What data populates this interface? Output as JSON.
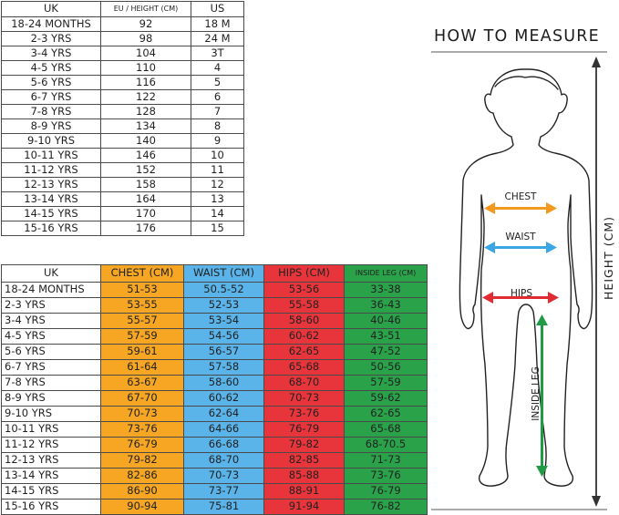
{
  "size_table": {
    "headers": [
      "UK",
      "EU / HEIGHT (CM)",
      "US"
    ],
    "rows": [
      [
        "18-24 MONTHS",
        "92",
        "18 M"
      ],
      [
        "2-3 YRS",
        "98",
        "24 M"
      ],
      [
        "3-4 YRS",
        "104",
        "3T"
      ],
      [
        "4-5 YRS",
        "110",
        "4"
      ],
      [
        "5-6 YRS",
        "116",
        "5"
      ],
      [
        "6-7 YRS",
        "122",
        "6"
      ],
      [
        "7-8 YRS",
        "128",
        "7"
      ],
      [
        "8-9 YRS",
        "134",
        "8"
      ],
      [
        "9-10 YRS",
        "140",
        "9"
      ],
      [
        "10-11 YRS",
        "146",
        "10"
      ],
      [
        "11-12 YRS",
        "152",
        "11"
      ],
      [
        "12-13 YRS",
        "158",
        "12"
      ],
      [
        "13-14 YRS",
        "164",
        "13"
      ],
      [
        "14-15 YRS",
        "170",
        "14"
      ],
      [
        "15-16 YRS",
        "176",
        "15"
      ]
    ]
  },
  "measure_table": {
    "headers": [
      "UK",
      "CHEST (CM)",
      "WAIST (CM)",
      "HIPS (CM)",
      "INSIDE LEG (CM)"
    ],
    "rows": [
      [
        "18-24 MONTHS",
        "51-53",
        "50.5-52",
        "53-56",
        "33-38"
      ],
      [
        "2-3 YRS",
        "53-55",
        "52-53",
        "55-58",
        "36-43"
      ],
      [
        "3-4 YRS",
        "55-57",
        "53-54",
        "58-60",
        "40-46"
      ],
      [
        "4-5 YRS",
        "57-59",
        "54-56",
        "60-62",
        "43-51"
      ],
      [
        "5-6 YRS",
        "59-61",
        "56-57",
        "62-65",
        "47-52"
      ],
      [
        "6-7 YRS",
        "61-64",
        "57-58",
        "65-68",
        "50-56"
      ],
      [
        "7-8 YRS",
        "63-67",
        "58-60",
        "68-70",
        "57-59"
      ],
      [
        "8-9 YRS",
        "67-70",
        "60-62",
        "70-73",
        "59-62"
      ],
      [
        "9-10 YRS",
        "70-73",
        "62-64",
        "73-76",
        "62-65"
      ],
      [
        "10-11 YRS",
        "73-76",
        "64-66",
        "76-79",
        "65-68"
      ],
      [
        "11-12 YRS",
        "76-79",
        "66-68",
        "79-82",
        "68-70.5"
      ],
      [
        "12-13 YRS",
        "79-82",
        "68-70",
        "82-85",
        "71-73"
      ],
      [
        "13-14 YRS",
        "82-86",
        "70-73",
        "85-88",
        "73-76"
      ],
      [
        "14-15 YRS",
        "86-90",
        "73-77",
        "88-91",
        "76-79"
      ],
      [
        "15-16 YRS",
        "90-94",
        "75-81",
        "91-94",
        "76-82"
      ]
    ]
  },
  "guide": {
    "title": "HOW TO MEASURE",
    "chest_label": "CHEST",
    "waist_label": "WAIST",
    "hips_label": "HIPS",
    "leg_label": "INSIDE LEG",
    "height_label": "HEIGHT (CM)",
    "icons": [
      "child-silhouette-icon",
      "chest-arrow-icon",
      "waist-arrow-icon",
      "hips-arrow-icon",
      "inside-leg-arrow-icon",
      "height-arrow-icon"
    ]
  },
  "colors": {
    "chest": "#f6a623",
    "waist": "#5ab4ea",
    "hips": "#e8353b",
    "inside_leg": "#2aa24a",
    "chest_arrow": "#f39a1e",
    "waist_arrow": "#3aa6e4",
    "hips_arrow": "#e02b33",
    "leg_arrow": "#1f9b46"
  }
}
